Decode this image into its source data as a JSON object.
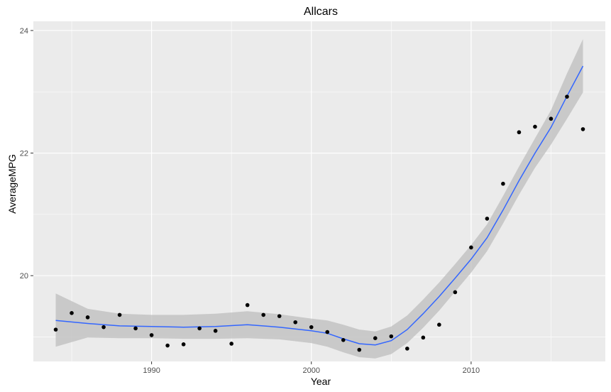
{
  "chart_data": {
    "type": "scatter",
    "title": "Allcars",
    "xlabel": "Year",
    "ylabel": "AverageMPG",
    "xlim": [
      1982.6,
      2018.4
    ],
    "ylim": [
      18.6,
      24.15
    ],
    "x_ticks": [
      1990,
      2000,
      2010
    ],
    "x_tick_labels": [
      "1990",
      "2000",
      "2010"
    ],
    "y_ticks": [
      20,
      22,
      24
    ],
    "y_tick_labels": [
      "20",
      "22",
      "24"
    ],
    "grid": true,
    "background": "#EBEBEB",
    "grid_color": "#FFFFFF",
    "point_color": "#000000",
    "smooth_color": "#3366FF",
    "band_color": "#BDBDBD",
    "points": [
      {
        "x": 1984,
        "y": 19.12
      },
      {
        "x": 1985,
        "y": 19.39
      },
      {
        "x": 1986,
        "y": 19.32
      },
      {
        "x": 1987,
        "y": 19.16
      },
      {
        "x": 1988,
        "y": 19.36
      },
      {
        "x": 1989,
        "y": 19.14
      },
      {
        "x": 1990,
        "y": 19.03
      },
      {
        "x": 1991,
        "y": 18.86
      },
      {
        "x": 1992,
        "y": 18.88
      },
      {
        "x": 1993,
        "y": 19.14
      },
      {
        "x": 1994,
        "y": 19.1
      },
      {
        "x": 1995,
        "y": 18.89
      },
      {
        "x": 1996,
        "y": 19.52
      },
      {
        "x": 1997,
        "y": 19.36
      },
      {
        "x": 1998,
        "y": 19.34
      },
      {
        "x": 1999,
        "y": 19.24
      },
      {
        "x": 2000,
        "y": 19.16
      },
      {
        "x": 2001,
        "y": 19.08
      },
      {
        "x": 2002,
        "y": 18.95
      },
      {
        "x": 2003,
        "y": 18.79
      },
      {
        "x": 2004,
        "y": 18.98
      },
      {
        "x": 2005,
        "y": 19.01
      },
      {
        "x": 2006,
        "y": 18.81
      },
      {
        "x": 2007,
        "y": 18.99
      },
      {
        "x": 2008,
        "y": 19.2
      },
      {
        "x": 2009,
        "y": 19.73
      },
      {
        "x": 2010,
        "y": 20.46
      },
      {
        "x": 2011,
        "y": 20.93
      },
      {
        "x": 2012,
        "y": 21.5
      },
      {
        "x": 2013,
        "y": 22.34
      },
      {
        "x": 2014,
        "y": 22.43
      },
      {
        "x": 2015,
        "y": 22.56
      },
      {
        "x": 2016,
        "y": 22.92
      },
      {
        "x": 2017,
        "y": 22.39
      }
    ],
    "smooth": [
      {
        "x": 1984,
        "y": 19.27,
        "lower": 18.84,
        "upper": 19.71
      },
      {
        "x": 1986,
        "y": 19.22,
        "lower": 18.99,
        "upper": 19.46
      },
      {
        "x": 1988,
        "y": 19.18,
        "lower": 18.98,
        "upper": 19.38
      },
      {
        "x": 1990,
        "y": 19.17,
        "lower": 18.98,
        "upper": 19.36
      },
      {
        "x": 1992,
        "y": 19.16,
        "lower": 18.97,
        "upper": 19.36
      },
      {
        "x": 1994,
        "y": 19.17,
        "lower": 18.97,
        "upper": 19.38
      },
      {
        "x": 1996,
        "y": 19.2,
        "lower": 18.98,
        "upper": 19.42
      },
      {
        "x": 1998,
        "y": 19.16,
        "lower": 18.96,
        "upper": 19.37
      },
      {
        "x": 2000,
        "y": 19.1,
        "lower": 18.9,
        "upper": 19.3
      },
      {
        "x": 2001,
        "y": 19.06,
        "lower": 18.84,
        "upper": 19.27
      },
      {
        "x": 2002,
        "y": 18.97,
        "lower": 18.75,
        "upper": 19.2
      },
      {
        "x": 2003,
        "y": 18.89,
        "lower": 18.67,
        "upper": 19.12
      },
      {
        "x": 2004,
        "y": 18.87,
        "lower": 18.65,
        "upper": 19.09
      },
      {
        "x": 2005,
        "y": 18.94,
        "lower": 18.72,
        "upper": 19.17
      },
      {
        "x": 2006,
        "y": 19.12,
        "lower": 18.9,
        "upper": 19.35
      },
      {
        "x": 2007,
        "y": 19.38,
        "lower": 19.15,
        "upper": 19.61
      },
      {
        "x": 2008,
        "y": 19.66,
        "lower": 19.43,
        "upper": 19.89
      },
      {
        "x": 2009,
        "y": 19.96,
        "lower": 19.74,
        "upper": 20.19
      },
      {
        "x": 2010,
        "y": 20.27,
        "lower": 20.05,
        "upper": 20.5
      },
      {
        "x": 2011,
        "y": 20.62,
        "lower": 20.4,
        "upper": 20.84
      },
      {
        "x": 2012,
        "y": 21.07,
        "lower": 20.85,
        "upper": 21.3
      },
      {
        "x": 2013,
        "y": 21.55,
        "lower": 21.32,
        "upper": 21.78
      },
      {
        "x": 2014,
        "y": 22.0,
        "lower": 21.76,
        "upper": 22.24
      },
      {
        "x": 2015,
        "y": 22.42,
        "lower": 22.14,
        "upper": 22.7
      },
      {
        "x": 2016,
        "y": 22.93,
        "lower": 22.56,
        "upper": 23.3
      },
      {
        "x": 2017,
        "y": 23.42,
        "lower": 22.99,
        "upper": 23.86
      }
    ]
  }
}
